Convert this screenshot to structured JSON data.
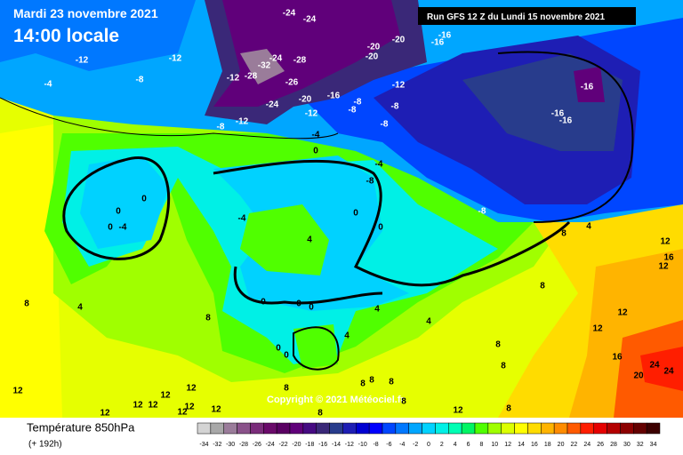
{
  "header": {
    "date": "Mardi 23 novembre 2021",
    "time": "14:00 locale",
    "run": "Run GFS 12 Z du Lundi 15 novembre 2021"
  },
  "map": {
    "contour_labels": [
      -24,
      -24,
      -20,
      -20,
      -20,
      -16,
      -16,
      -12,
      -12,
      -8,
      -4,
      -32,
      -28,
      -24,
      -12,
      -28,
      -26,
      -20,
      -16,
      -24,
      -12,
      -8,
      -8,
      -12,
      -8,
      -12,
      -8,
      -8,
      -4,
      0,
      -16,
      -16,
      -16,
      -4,
      -8,
      -8,
      0,
      0,
      0,
      -4,
      -4,
      0,
      0,
      4,
      0,
      0,
      0,
      4,
      8,
      4,
      8,
      0,
      0,
      4,
      4,
      8,
      8,
      12,
      12,
      16,
      20,
      24,
      24,
      8,
      4,
      12,
      16,
      12,
      8,
      12,
      12,
      12,
      12,
      12,
      12,
      12,
      12,
      12,
      8,
      8,
      8,
      8,
      8,
      8,
      8,
      12
    ],
    "copyright": "Copyright © 2021 Météociel.fr"
  },
  "legend": {
    "title": "Température 850hPa",
    "lead": "(+ 192h)",
    "scale": [
      {
        "value": -34,
        "color": "#d4d4d4"
      },
      {
        "value": -32,
        "color": "#a8a8a8"
      },
      {
        "value": -30,
        "color": "#9a7c9a"
      },
      {
        "value": -28,
        "color": "#8a528a"
      },
      {
        "value": -26,
        "color": "#7a2c7a"
      },
      {
        "value": -24,
        "color": "#6a0a6a"
      },
      {
        "value": -22,
        "color": "#5a0062"
      },
      {
        "value": -20,
        "color": "#60007a"
      },
      {
        "value": -18,
        "color": "#460a82"
      },
      {
        "value": -16,
        "color": "#3a2878"
      },
      {
        "value": -14,
        "color": "#283c8c"
      },
      {
        "value": -12,
        "color": "#1e1eb4"
      },
      {
        "value": -10,
        "color": "#0000d2"
      },
      {
        "value": -8,
        "color": "#0000ff"
      },
      {
        "value": -6,
        "color": "#0046ff"
      },
      {
        "value": -4,
        "color": "#0078ff"
      },
      {
        "value": -2,
        "color": "#00a6ff"
      },
      {
        "value": 0,
        "color": "#00d2ff"
      },
      {
        "value": 2,
        "color": "#00f0e6"
      },
      {
        "value": 4,
        "color": "#00ffb4"
      },
      {
        "value": 6,
        "color": "#00f564"
      },
      {
        "value": 8,
        "color": "#50ff00"
      },
      {
        "value": 10,
        "color": "#a0ff00"
      },
      {
        "value": 12,
        "color": "#dcff00"
      },
      {
        "value": 14,
        "color": "#ffff00"
      },
      {
        "value": 16,
        "color": "#ffdc00"
      },
      {
        "value": 18,
        "color": "#ffb400"
      },
      {
        "value": 20,
        "color": "#ff8c00"
      },
      {
        "value": 22,
        "color": "#ff5a00"
      },
      {
        "value": 24,
        "color": "#ff1e00"
      },
      {
        "value": 26,
        "color": "#e60000"
      },
      {
        "value": 28,
        "color": "#b40000"
      },
      {
        "value": 30,
        "color": "#8c0000"
      },
      {
        "value": 32,
        "color": "#640000"
      },
      {
        "value": 34,
        "color": "#3c0000"
      }
    ]
  }
}
